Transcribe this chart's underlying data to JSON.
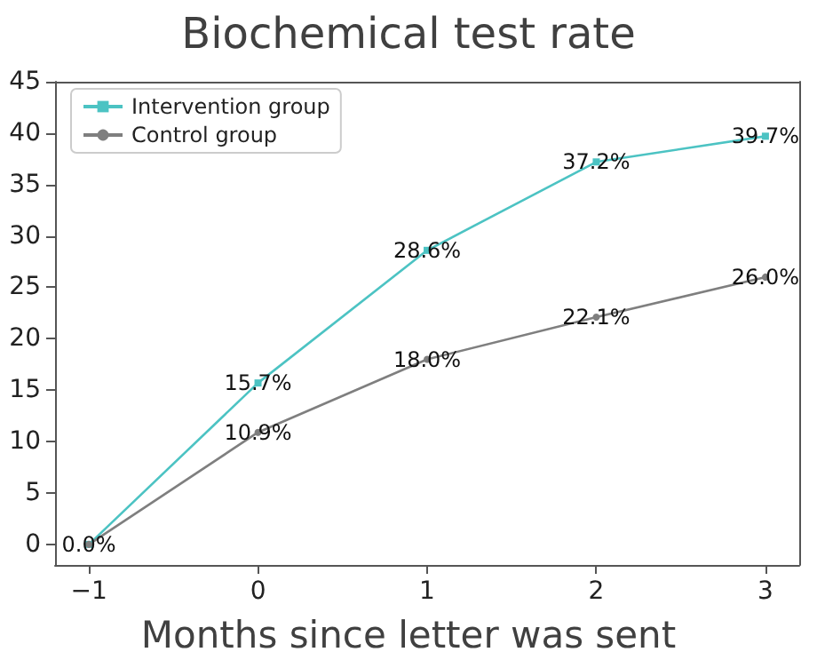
{
  "chart_data": {
    "type": "line",
    "title": "Biochemical test rate",
    "xlabel": "Months since letter was sent",
    "x": [
      -1,
      0,
      1,
      2,
      3
    ],
    "series": [
      {
        "name": "Intervention group",
        "color": "#4cc3c3",
        "marker": "square",
        "values": [
          0.0,
          15.7,
          28.6,
          37.2,
          39.7
        ],
        "value_labels": [
          null,
          "15.7%",
          "28.6%",
          "37.2%",
          "39.7%"
        ]
      },
      {
        "name": "Control group",
        "color": "#7f7f7f",
        "marker": "circle",
        "values": [
          0.0,
          10.9,
          18.0,
          22.1,
          26.0
        ],
        "value_labels": [
          "0.0%",
          "10.9%",
          "18.0%",
          "22.1%",
          "26.0%"
        ]
      }
    ],
    "xlim": [
      -1.2,
      3.2
    ],
    "xticks": [
      {
        "value": -1,
        "label": "−1"
      },
      0,
      1,
      2,
      3
    ],
    "ylim": [
      -2,
      45
    ],
    "yticks": [
      0,
      5,
      10,
      15,
      20,
      25,
      30,
      35,
      40,
      45
    ],
    "grid": false,
    "legend": "top left"
  }
}
